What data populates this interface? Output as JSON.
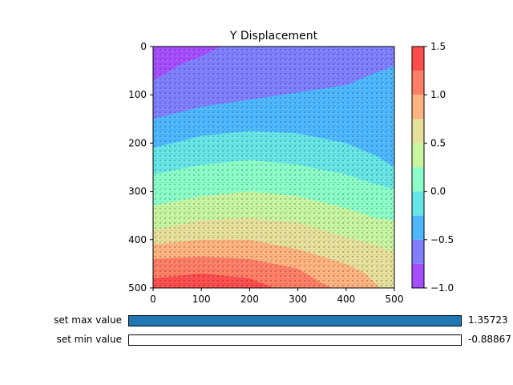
{
  "chart_data": {
    "type": "heatmap",
    "title": "Y Displacement",
    "xlabel": "",
    "ylabel": "",
    "x_ticks": [
      "0",
      "100",
      "200",
      "300",
      "400",
      "500"
    ],
    "y_ticks": [
      "0",
      "100",
      "200",
      "300",
      "400",
      "500"
    ],
    "xlim": [
      0,
      500
    ],
    "ylim": [
      500,
      0
    ],
    "colorbar": {
      "levels": [
        -1.0,
        -0.75,
        -0.5,
        -0.25,
        0.0,
        0.25,
        0.5,
        0.75,
        1.0,
        1.25,
        1.5
      ],
      "tick_labels": [
        "1.5",
        "1.0",
        "0.5",
        "0.0",
        "−0.5",
        "−1.0"
      ],
      "colors": [
        "#a64dff",
        "#7f7fff",
        "#4db8ff",
        "#66e6e6",
        "#8cffc8",
        "#c8f5a0",
        "#e6e09b",
        "#ffb380",
        "#ff7f66",
        "#ff4d4d"
      ],
      "colormap": "rainbow"
    },
    "grid": false,
    "legend": "none"
  },
  "sliders": [
    {
      "label": "set max value",
      "value": "1.35723",
      "value_max": 1.35723,
      "fill_fraction": 1.0
    },
    {
      "label": "set min value",
      "value": "-0.88867",
      "fill_fraction": 0.0
    }
  ]
}
